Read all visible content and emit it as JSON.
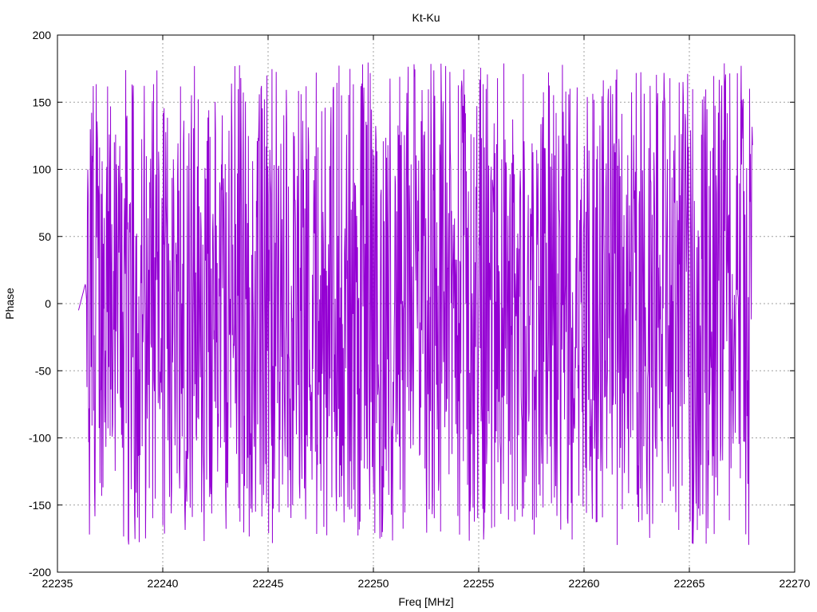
{
  "chart_data": {
    "type": "line",
    "title": "Kt-Ku",
    "xlabel": "Freq [MHz]",
    "ylabel": "Phase",
    "xlim": [
      22235,
      22270
    ],
    "ylim": [
      -200,
      200
    ],
    "xticks": [
      22235,
      22240,
      22245,
      22250,
      22255,
      22260,
      22265,
      22270
    ],
    "yticks": [
      -200,
      -150,
      -100,
      -50,
      0,
      50,
      100,
      150,
      200
    ],
    "grid": true,
    "legend": "none",
    "series_color": "#9400d3",
    "x_start": 22236.0,
    "x_end": 22268.0,
    "sample_count": 1600,
    "series": [
      {
        "values_sample": [
          -5,
          15,
          -64,
          118,
          -97,
          40,
          81,
          20,
          90,
          61,
          -109,
          111,
          -146,
          -80,
          170,
          -175,
          40,
          152,
          -176,
          -150,
          175,
          90,
          -180,
          178,
          -176,
          166,
          -179,
          150,
          -163,
          178,
          -165,
          179,
          -160,
          173,
          -172,
          160,
          -146,
          178,
          -156,
          174,
          -178,
          161,
          -165,
          171,
          -150,
          160,
          -140,
          170,
          -175,
          178,
          -178,
          164,
          -172,
          167,
          -170,
          170,
          -163,
          156,
          -180,
          176,
          -178,
          174,
          -175,
          166,
          -154,
          178,
          -178,
          160,
          -170,
          156,
          -175,
          178,
          -164,
          160,
          -176,
          150,
          -168,
          178,
          -180,
          168,
          -162,
          178,
          -170,
          160,
          -178,
          156,
          -174,
          178,
          -158,
          164,
          -172,
          178,
          -176,
          166,
          -172,
          156,
          -165,
          118
        ]
      }
    ]
  }
}
